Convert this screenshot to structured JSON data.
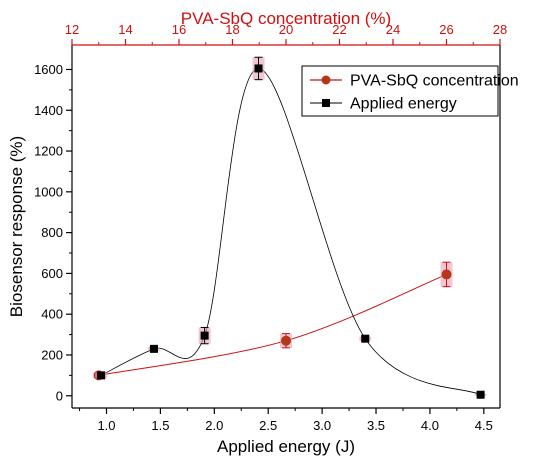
{
  "chart_data": {
    "type": "line",
    "ylabel": "Biosensor response (%)",
    "xlabel": "Applied energy (J)",
    "x2label": "PVA-SbQ concentration (%)",
    "ylim": [
      -60,
      1720
    ],
    "xlim": [
      0.68,
      4.65
    ],
    "x2lim": [
      12,
      28
    ],
    "yticks": [
      0,
      200,
      400,
      600,
      800,
      1000,
      1200,
      1400,
      1600
    ],
    "xticks": [
      1.0,
      1.5,
      2.0,
      2.5,
      3.0,
      3.5,
      4.0,
      4.5
    ],
    "x2ticks": [
      12,
      14,
      16,
      18,
      20,
      22,
      24,
      26,
      28
    ],
    "grid": false,
    "legend_position": "top-right",
    "colors": {
      "axis_top": "#d01010",
      "pva": "#d01010",
      "pva_marker": "#b5361b",
      "energy": "#000000",
      "errorbar_fill": "#e8a0b8"
    },
    "series": [
      {
        "name": "PVA-SbQ concentration",
        "axis": "top",
        "marker": "circle",
        "color": "#d01010",
        "x": [
          13,
          20,
          26
        ],
        "y": [
          100,
          270,
          595
        ],
        "err": [
          15,
          35,
          60
        ]
      },
      {
        "name": "Applied energy",
        "axis": "bottom",
        "marker": "square",
        "color": "#000000",
        "x": [
          0.95,
          1.44,
          1.91,
          2.41,
          3.4,
          4.47
        ],
        "y": [
          100,
          230,
          295,
          1605,
          280,
          5
        ],
        "err": [
          15,
          10,
          40,
          55,
          10,
          5
        ]
      }
    ]
  }
}
